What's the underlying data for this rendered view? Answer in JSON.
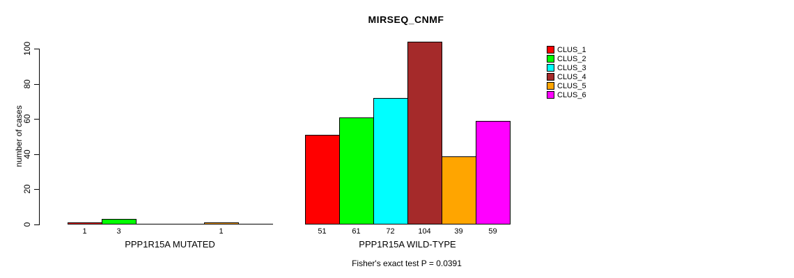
{
  "chart_data": {
    "type": "bar",
    "title": "MIRSEQ_CNMF",
    "ylabel": "number of cases",
    "xlabel": "",
    "ylim": [
      0,
      100
    ],
    "yticks": [
      0,
      20,
      40,
      60,
      80,
      100
    ],
    "grid": false,
    "legend_position": "top-right",
    "categories": [
      "PPP1R15A MUTATED",
      "PPP1R15A WILD-TYPE"
    ],
    "series": [
      {
        "name": "CLUS_1",
        "color": "#FF0000",
        "values": [
          1,
          51
        ]
      },
      {
        "name": "CLUS_2",
        "color": "#00FF00",
        "values": [
          3,
          61
        ]
      },
      {
        "name": "CLUS_3",
        "color": "#00FFFF",
        "values": [
          0,
          72
        ]
      },
      {
        "name": "CLUS_4",
        "color": "#A52A2A",
        "values": [
          0,
          104
        ]
      },
      {
        "name": "CLUS_5",
        "color": "#FFA500",
        "values": [
          1,
          39
        ]
      },
      {
        "name": "CLUS_6",
        "color": "#FF00FF",
        "values": [
          0,
          59
        ]
      }
    ],
    "bar_value_labels_shown": [
      "1",
      "3",
      "1",
      "51",
      "61",
      "72",
      "104",
      "39",
      "59"
    ],
    "annotation": "Fisher's exact test P = 0.0391"
  }
}
